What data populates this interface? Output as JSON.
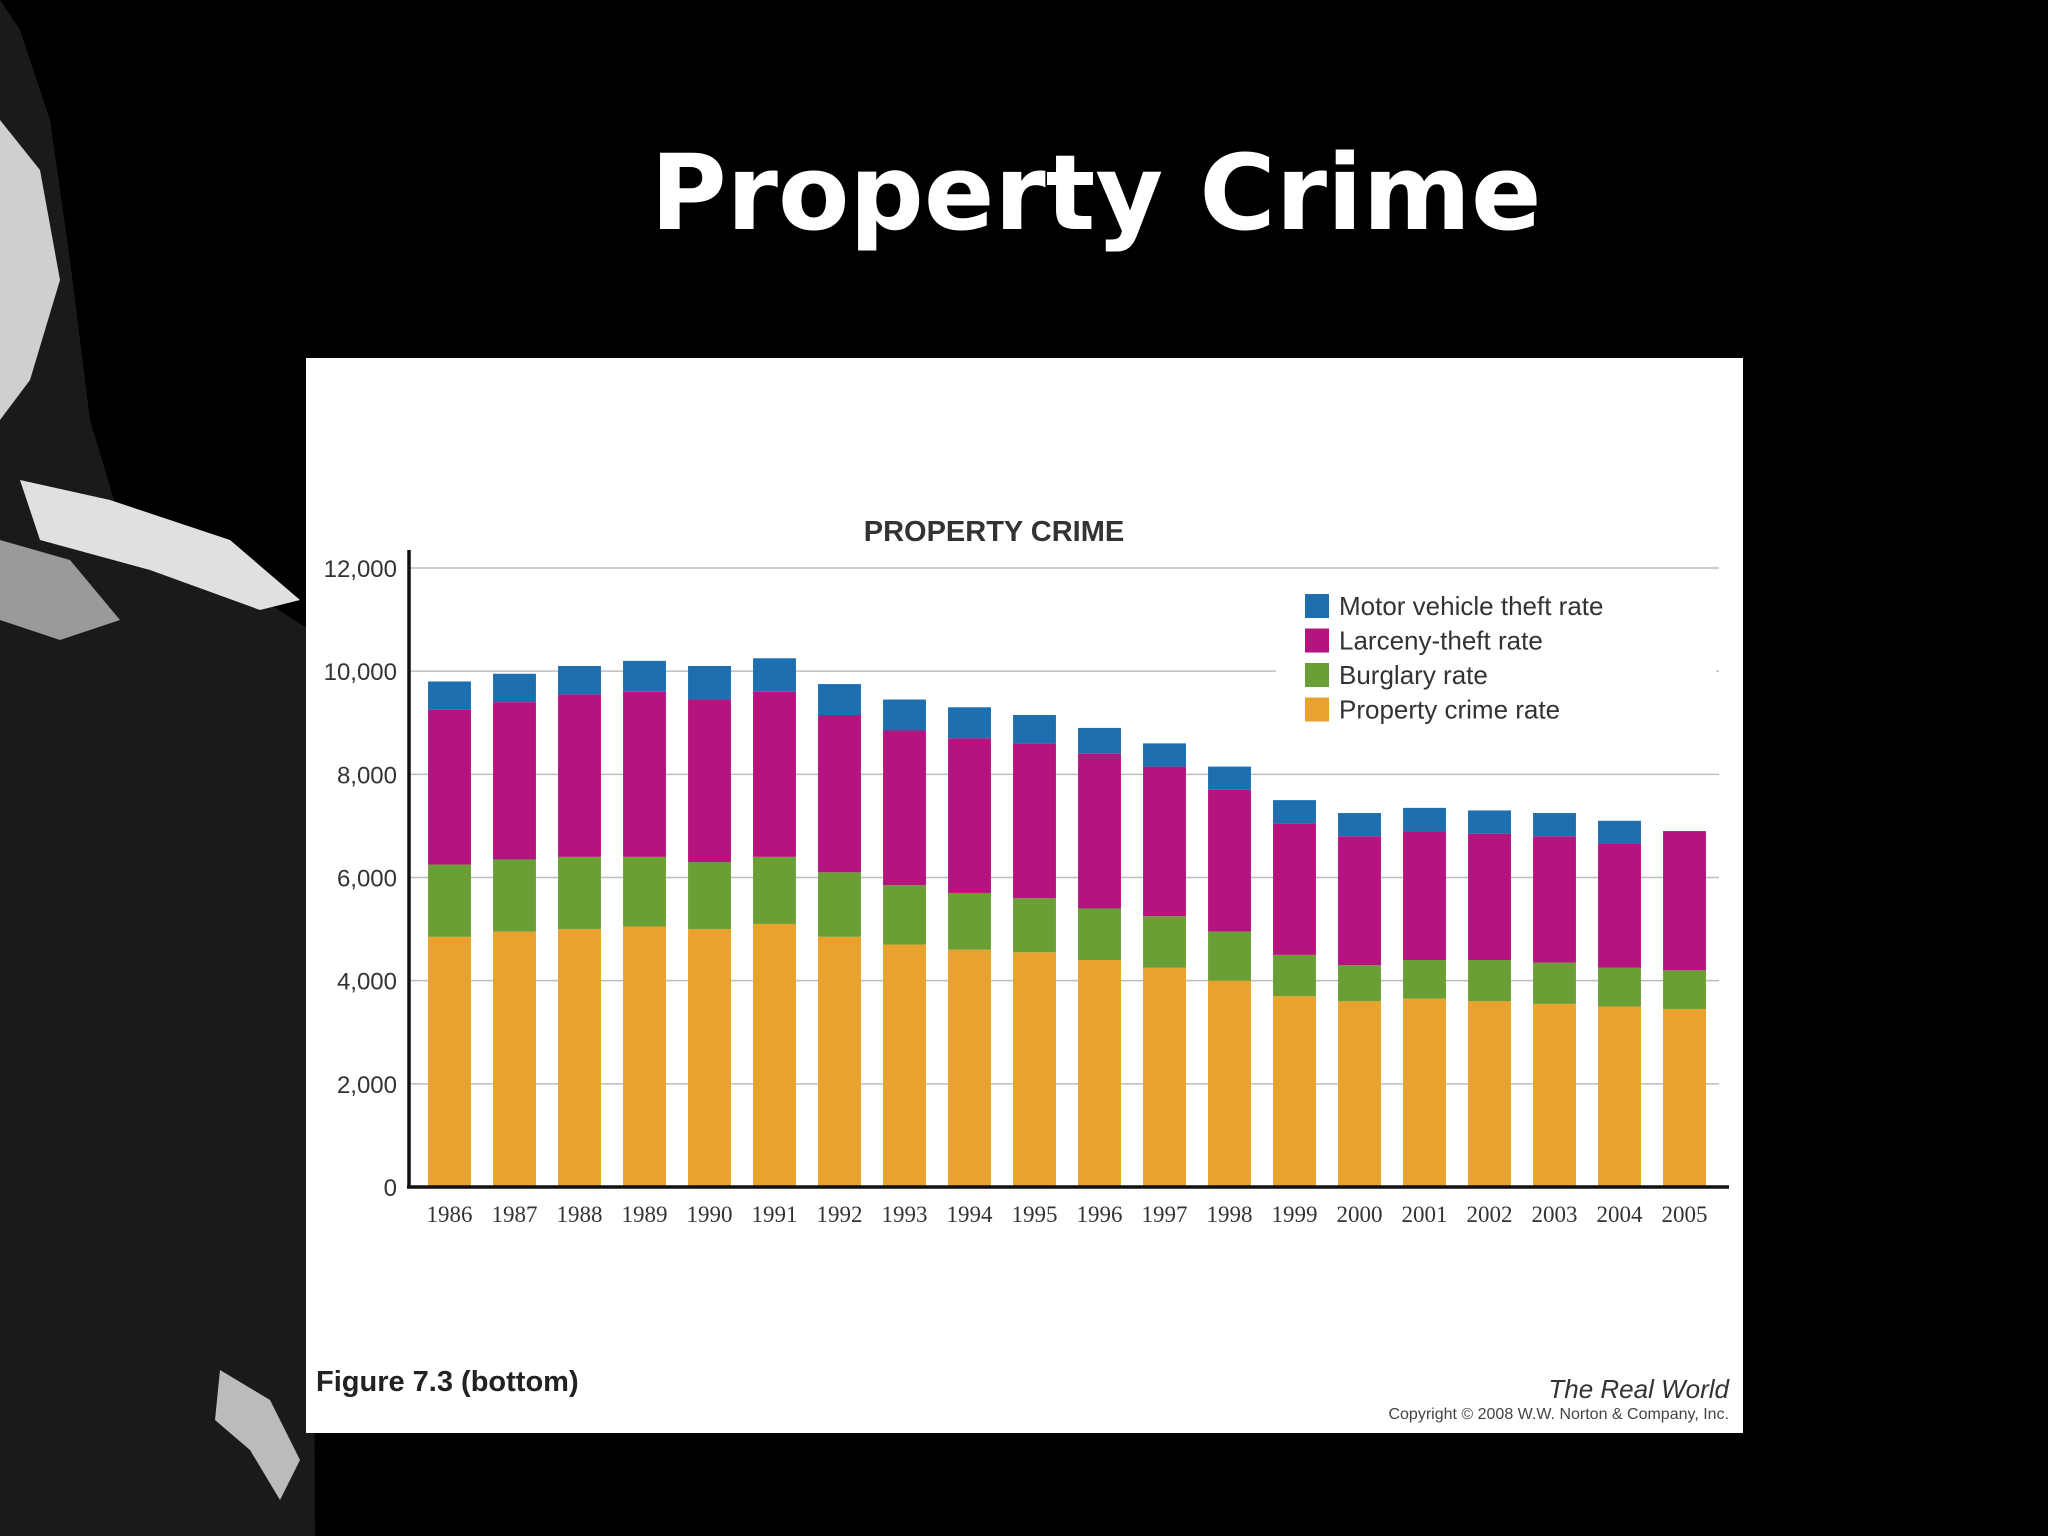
{
  "slide": {
    "title": "Property Crime"
  },
  "figure": {
    "caption": "Figure 7.3 (bottom)",
    "book_title": "The Real World",
    "copyright": "Copyright © 2008 W.W. Norton & Company, Inc."
  },
  "colors": {
    "background": "#000000",
    "panel": "#ffffff",
    "motor_vehicle": "#1e6fb0",
    "larceny": "#b5147e",
    "burglary": "#6a9f35",
    "property": "#eaa22e"
  },
  "chart_data": {
    "type": "bar",
    "stacked": true,
    "title": "PROPERTY CRIME",
    "xlabel": "",
    "ylabel": "",
    "ylim": [
      0,
      12000
    ],
    "yticks": [
      0,
      2000,
      4000,
      6000,
      8000,
      10000,
      12000
    ],
    "ytick_labels": [
      "0",
      "2,000",
      "4,000",
      "6,000",
      "8,000",
      "10,000",
      "12,000"
    ],
    "grid": true,
    "legend_position": "top-right",
    "categories": [
      "1986",
      "1987",
      "1988",
      "1989",
      "1990",
      "1991",
      "1992",
      "1993",
      "1994",
      "1995",
      "1996",
      "1997",
      "1998",
      "1999",
      "2000",
      "2001",
      "2002",
      "2003",
      "2004",
      "2005"
    ],
    "series": [
      {
        "name": "Property crime rate",
        "color": "#eaa22e",
        "values": [
          4850,
          4950,
          5000,
          5050,
          5000,
          5100,
          4850,
          4700,
          4600,
          4550,
          4400,
          4250,
          4000,
          3700,
          3600,
          3650,
          3600,
          3550,
          3500,
          3450
        ]
      },
      {
        "name": "Burglary rate",
        "color": "#6a9f35",
        "values": [
          1400,
          1400,
          1400,
          1350,
          1300,
          1300,
          1250,
          1150,
          1100,
          1050,
          1000,
          1000,
          950,
          800,
          700,
          750,
          800,
          800,
          750,
          750
        ]
      },
      {
        "name": "Larceny-theft rate",
        "color": "#b5147e",
        "values": [
          3000,
          3050,
          3150,
          3200,
          3150,
          3200,
          3050,
          3000,
          3000,
          3000,
          3000,
          2900,
          2750,
          2550,
          2500,
          2500,
          2450,
          2450,
          2400,
          2700
        ]
      },
      {
        "name": "Motor vehicle theft rate",
        "color": "#1e6fb0",
        "values": [
          550,
          550,
          550,
          600,
          650,
          650,
          600,
          600,
          600,
          550,
          500,
          450,
          450,
          450,
          450,
          450,
          450,
          450,
          450,
          0
        ]
      }
    ],
    "legend_order": [
      "Motor vehicle theft rate",
      "Larceny-theft rate",
      "Burglary rate",
      "Property crime rate"
    ]
  }
}
